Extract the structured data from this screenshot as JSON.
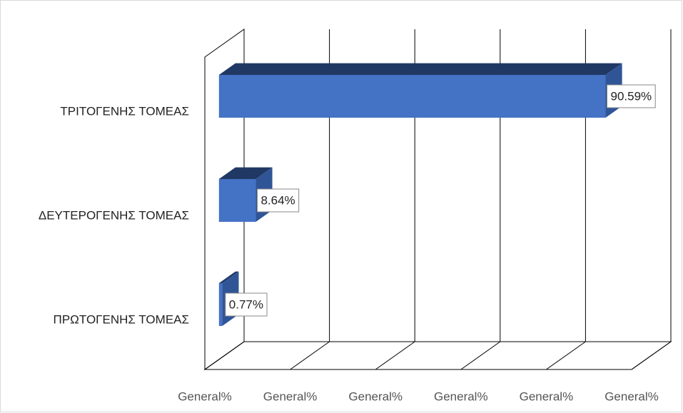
{
  "chart_data": {
    "type": "bar3d_horizontal",
    "categories": [
      "ΠΡΩΤΟΓΕΝΗΣ ΤΟΜΕΑΣ",
      "ΔΕΥΤΕΡΟΓΕΝΗΣ ΤΟΜΕΑΣ",
      "ΤΡΙΤΟΓΕΝΗΣ ΤΟΜΕΑΣ"
    ],
    "values": [
      0.77,
      8.64,
      90.59
    ],
    "value_labels": [
      "0.77%",
      "8.64%",
      "90.59%"
    ],
    "color": "#4472c4",
    "xlim": [
      0,
      100
    ],
    "xticks": [
      {
        "value": 0,
        "label": "General%"
      },
      {
        "value": 20,
        "label": "General%"
      },
      {
        "value": 40,
        "label": "General%"
      },
      {
        "value": 60,
        "label": "General%"
      },
      {
        "value": 80,
        "label": "General%"
      },
      {
        "value": 100,
        "label": "General%"
      }
    ],
    "grid": true
  }
}
